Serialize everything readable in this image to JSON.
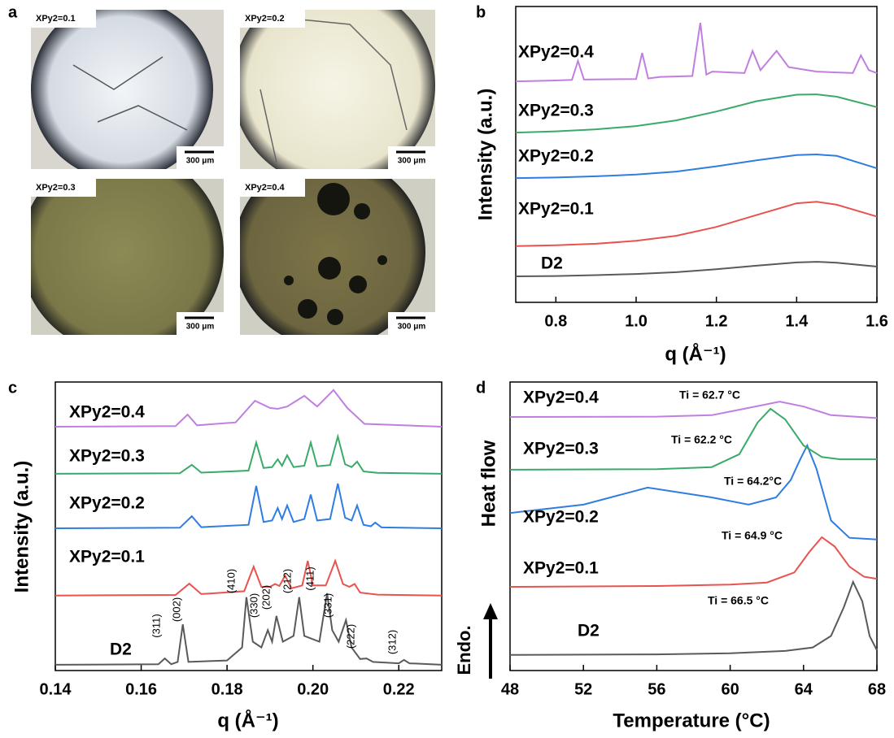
{
  "panel_labels": [
    "a",
    "b",
    "c",
    "d"
  ],
  "micrographs": {
    "panels": [
      {
        "label": "XPy2=0.1",
        "scale_bar": "300 μm"
      },
      {
        "label": "XPy2=0.2",
        "scale_bar": "300 μm"
      },
      {
        "label": "XPy2=0.3",
        "scale_bar": "300 μm"
      },
      {
        "label": "XPy2=0.4",
        "scale_bar": "300 μm"
      }
    ]
  },
  "chart_data": [
    {
      "type": "line",
      "xlabel": "q (Å⁻¹)",
      "ylabel": "Intensity (a.u.)",
      "xlim": [
        0.7,
        1.6
      ],
      "ylim": [
        0,
        100
      ],
      "xticks": [
        0.8,
        {
          "value": 1,
          "label": "1.0"
        },
        1.2,
        1.4,
        1.6
      ],
      "series": [
        {
          "name": "D2",
          "color": "#5a5a5a",
          "x": [
            0.7,
            0.8,
            0.9,
            1.0,
            1.1,
            1.2,
            1.3,
            1.4,
            1.45,
            1.5,
            1.6
          ],
          "values": [
            8.8,
            8.9,
            9.2,
            9.6,
            10.2,
            11.2,
            12.4,
            13.5,
            13.7,
            13.4,
            12.1
          ]
        },
        {
          "name": "XPy2=0.1",
          "color": "#e8534f",
          "x": [
            0.7,
            0.8,
            0.9,
            1.0,
            1.1,
            1.2,
            1.3,
            1.4,
            1.45,
            1.5,
            1.6
          ],
          "values": [
            19,
            19.3,
            19.8,
            20.8,
            22.5,
            25.5,
            29.5,
            33.5,
            34,
            33,
            29
          ]
        },
        {
          "name": "XPy2=0.2",
          "color": "#2f7de1",
          "x": [
            0.7,
            0.8,
            0.9,
            1.0,
            1.1,
            1.2,
            1.3,
            1.4,
            1.45,
            1.5,
            1.6
          ],
          "values": [
            42,
            42.2,
            42.6,
            43.2,
            44.2,
            46,
            48,
            49.8,
            50,
            49.5,
            45.3
          ]
        },
        {
          "name": "XPy2=0.3",
          "color": "#3aaa6a",
          "x": [
            0.7,
            0.8,
            0.9,
            1.0,
            1.1,
            1.2,
            1.3,
            1.4,
            1.45,
            1.5,
            1.6
          ],
          "values": [
            57.4,
            57.8,
            58.5,
            59.6,
            61.5,
            64.5,
            68,
            70.2,
            70.3,
            69.5,
            66
          ]
        },
        {
          "name": "XPy2=0.4",
          "color": "#c07fe0",
          "x": [
            0.7,
            0.8,
            0.84,
            0.855,
            0.87,
            1.0,
            1.015,
            1.03,
            1.06,
            1.14,
            1.16,
            1.175,
            1.19,
            1.27,
            1.29,
            1.31,
            1.35,
            1.38,
            1.45,
            1.54,
            1.56,
            1.58,
            1.6
          ],
          "values": [
            74.7,
            75,
            75.2,
            81.6,
            75.3,
            75.5,
            84.3,
            75.7,
            76.2,
            76.5,
            94.5,
            77,
            78,
            77.5,
            85,
            78.5,
            85,
            79.5,
            78,
            77.5,
            83.5,
            78.5,
            77.5
          ]
        }
      ]
    },
    {
      "type": "line",
      "xlabel": "q (Å⁻¹)",
      "ylabel": "Intensity (a.u.)",
      "xlim": [
        0.14,
        0.23
      ],
      "ylim": [
        0,
        100
      ],
      "xticks": [
        0.14,
        0.16,
        0.18,
        {
          "value": 0.2,
          "label": "0.20"
        },
        0.22
      ],
      "annotations": [
        "(311)",
        "(002)",
        "(410)",
        "(330)",
        "(202)",
        "(212)",
        "(411)",
        "(331)",
        "(222)",
        "(312)"
      ],
      "series": [
        {
          "name": "D2",
          "color": "#5a5a5a",
          "x": [
            0.14,
            0.164,
            0.1655,
            0.167,
            0.1685,
            0.1697,
            0.171,
            0.18,
            0.1835,
            0.1845,
            0.186,
            0.188,
            0.1895,
            0.1905,
            0.1915,
            0.193,
            0.1955,
            0.1968,
            0.198,
            0.2015,
            0.2033,
            0.2045,
            0.206,
            0.2077,
            0.209,
            0.211,
            0.2125,
            0.214,
            0.22,
            0.2212,
            0.2225,
            0.23
          ],
          "values": [
            2,
            2.2,
            4.2,
            2.2,
            3,
            16,
            3,
            3.5,
            8,
            25.4,
            10,
            8,
            14,
            10,
            18.9,
            10,
            12,
            25.4,
            12,
            10,
            26.8,
            14,
            10,
            17.5,
            8,
            4,
            4.2,
            3,
            2.5,
            3.7,
            2.5,
            2
          ]
        },
        {
          "name": "XPy2=0.1",
          "color": "#e8534f",
          "x": [
            0.14,
            0.168,
            0.1712,
            0.174,
            0.184,
            0.1862,
            0.188,
            0.19,
            0.1912,
            0.1922,
            0.1935,
            0.195,
            0.1975,
            0.1988,
            0.2,
            0.203,
            0.2052,
            0.207,
            0.2085,
            0.2097,
            0.211,
            0.215,
            0.23
          ],
          "values": [
            26,
            26.2,
            30.1,
            26.5,
            27.5,
            36,
            29,
            29,
            30,
            29.3,
            32.9,
            28.5,
            29.5,
            38,
            29.5,
            29.5,
            38,
            30,
            29,
            30,
            27,
            26.3,
            26
          ]
        },
        {
          "name": "XPy2=0.2",
          "color": "#2f7de1",
          "x": [
            0.14,
            0.169,
            0.1718,
            0.174,
            0.185,
            0.1868,
            0.1885,
            0.1905,
            0.1918,
            0.1928,
            0.194,
            0.1955,
            0.198,
            0.1995,
            0.201,
            0.204,
            0.2058,
            0.2075,
            0.209,
            0.2103,
            0.2118,
            0.2135,
            0.2145,
            0.216,
            0.23
          ],
          "values": [
            49.3,
            49.5,
            53.5,
            49.7,
            50.5,
            64,
            51.5,
            52,
            56.3,
            52.5,
            57.2,
            51.5,
            52.5,
            61,
            52,
            52.5,
            64.8,
            53,
            52,
            57.2,
            50.5,
            50,
            51.3,
            49.6,
            49.3
          ]
        },
        {
          "name": "XPy2=0.3",
          "color": "#3aaa6a",
          "x": [
            0.14,
            0.169,
            0.1718,
            0.174,
            0.185,
            0.1868,
            0.1885,
            0.1905,
            0.1918,
            0.1928,
            0.194,
            0.1955,
            0.198,
            0.1995,
            0.201,
            0.204,
            0.2058,
            0.2075,
            0.209,
            0.2103,
            0.2118,
            0.215,
            0.23
          ],
          "values": [
            68.2,
            68.4,
            71.3,
            68.6,
            69.3,
            79,
            70.2,
            70.5,
            73.2,
            71,
            74.6,
            70.5,
            71,
            79,
            70.8,
            71.2,
            81.1,
            71.5,
            70.5,
            72.4,
            69,
            68.5,
            68.2
          ]
        },
        {
          "name": "XPy2=0.4",
          "color": "#c07fe0",
          "x": [
            0.14,
            0.168,
            0.1708,
            0.173,
            0.182,
            0.1865,
            0.19,
            0.1918,
            0.194,
            0.198,
            0.201,
            0.2048,
            0.208,
            0.212,
            0.23
          ],
          "values": [
            84.5,
            84.7,
            88.7,
            85,
            86,
            93.5,
            91,
            90.7,
            91.5,
            95.2,
            91.5,
            97.2,
            91,
            85.5,
            84.5
          ]
        }
      ]
    },
    {
      "type": "line",
      "xlabel": "Temperature (°C)",
      "ylabel": "Heat flow",
      "arrow_label": "Endo.",
      "xlim": [
        48,
        68
      ],
      "ylim": [
        0,
        100
      ],
      "xticks": [
        48,
        52,
        56,
        60,
        64,
        68
      ],
      "annotations": [
        "Ti = 66.5 °C",
        "Ti = 64.9 °C",
        "Ti = 64.2°C",
        "Ti = 62.2 °C",
        "Ti = 62.7 °C"
      ],
      "series": [
        {
          "name": "D2",
          "color": "#5a5a5a",
          "x": [
            48,
            56,
            60,
            63,
            64.5,
            65.5,
            66.2,
            66.7,
            67.2,
            67.6,
            68
          ],
          "values": [
            5.4,
            5.6,
            6,
            6.8,
            8,
            12,
            22,
            30.7,
            24,
            12,
            7
          ]
        },
        {
          "name": "XPy2=0.1",
          "color": "#e8534f",
          "x": [
            48,
            56,
            60,
            62,
            63.5,
            64.3,
            65,
            65.7,
            66.5,
            67.3,
            68
          ],
          "values": [
            29,
            29.3,
            29.8,
            30.5,
            34,
            41,
            46.2,
            43,
            36,
            32.5,
            31.8
          ]
        },
        {
          "name": "XPy2=0.2",
          "color": "#2f7de1",
          "x": [
            48,
            52,
            55.5,
            59,
            61,
            62.5,
            63.3,
            63.8,
            64.2,
            64.7,
            65.5,
            66.5,
            68
          ],
          "values": [
            54.6,
            57.5,
            63.4,
            60,
            57.5,
            60,
            66,
            73,
            78,
            70,
            52,
            46,
            45.4
          ]
        },
        {
          "name": "XPy2=0.3",
          "color": "#3aaa6a",
          "x": [
            48,
            56,
            59,
            60.5,
            61.5,
            62.2,
            63,
            64,
            65,
            66,
            68
          ],
          "values": [
            69.6,
            69.8,
            70.5,
            75,
            86,
            90.7,
            87,
            78,
            74,
            73.2,
            73.2
          ]
        },
        {
          "name": "XPy2=0.4",
          "color": "#c07fe0",
          "x": [
            48,
            56,
            59,
            61,
            62.7,
            64,
            65.5,
            68
          ],
          "values": [
            87.9,
            88,
            88.5,
            91,
            93.2,
            91.5,
            88.5,
            87.5
          ]
        }
      ]
    }
  ]
}
